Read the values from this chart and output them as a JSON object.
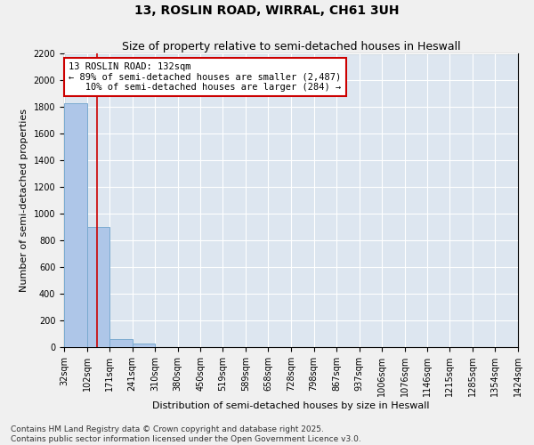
{
  "title": "13, ROSLIN ROAD, WIRRAL, CH61 3UH",
  "subtitle": "Size of property relative to semi-detached houses in Heswall",
  "xlabel": "Distribution of semi-detached houses by size in Heswall",
  "ylabel": "Number of semi-detached properties",
  "bin_labels": [
    "32sqm",
    "102sqm",
    "171sqm",
    "241sqm",
    "310sqm",
    "380sqm",
    "450sqm",
    "519sqm",
    "589sqm",
    "658sqm",
    "728sqm",
    "798sqm",
    "867sqm",
    "937sqm",
    "1006sqm",
    "1076sqm",
    "1146sqm",
    "1215sqm",
    "1285sqm",
    "1354sqm",
    "1424sqm"
  ],
  "bin_edges": [
    32,
    102,
    171,
    241,
    310,
    380,
    450,
    519,
    589,
    658,
    728,
    798,
    867,
    937,
    1006,
    1076,
    1146,
    1215,
    1285,
    1354,
    1424
  ],
  "bar_heights": [
    1830,
    900,
    60,
    30,
    0,
    0,
    0,
    0,
    0,
    0,
    0,
    0,
    0,
    0,
    0,
    0,
    0,
    0,
    0,
    0
  ],
  "bar_color": "#aec6e8",
  "bar_edge_color": "#7aaad0",
  "property_size": 132,
  "vline_color": "#cc0000",
  "ylim": [
    0,
    2200
  ],
  "yticks": [
    0,
    200,
    400,
    600,
    800,
    1000,
    1200,
    1400,
    1600,
    1800,
    2000,
    2200
  ],
  "annotation_line1": "13 ROSLIN ROAD: 132sqm",
  "annotation_line2": "← 89% of semi-detached houses are smaller (2,487)",
  "annotation_line3": "   10% of semi-detached houses are larger (284) →",
  "annotation_box_color": "#cc0000",
  "bg_color": "#dde6f0",
  "grid_color": "#ffffff",
  "fig_bg_color": "#f0f0f0",
  "footer_text": "Contains HM Land Registry data © Crown copyright and database right 2025.\nContains public sector information licensed under the Open Government Licence v3.0.",
  "title_fontsize": 10,
  "subtitle_fontsize": 9,
  "xlabel_fontsize": 8,
  "ylabel_fontsize": 8,
  "annotation_fontsize": 7.5,
  "footer_fontsize": 6.5,
  "tick_fontsize": 7
}
